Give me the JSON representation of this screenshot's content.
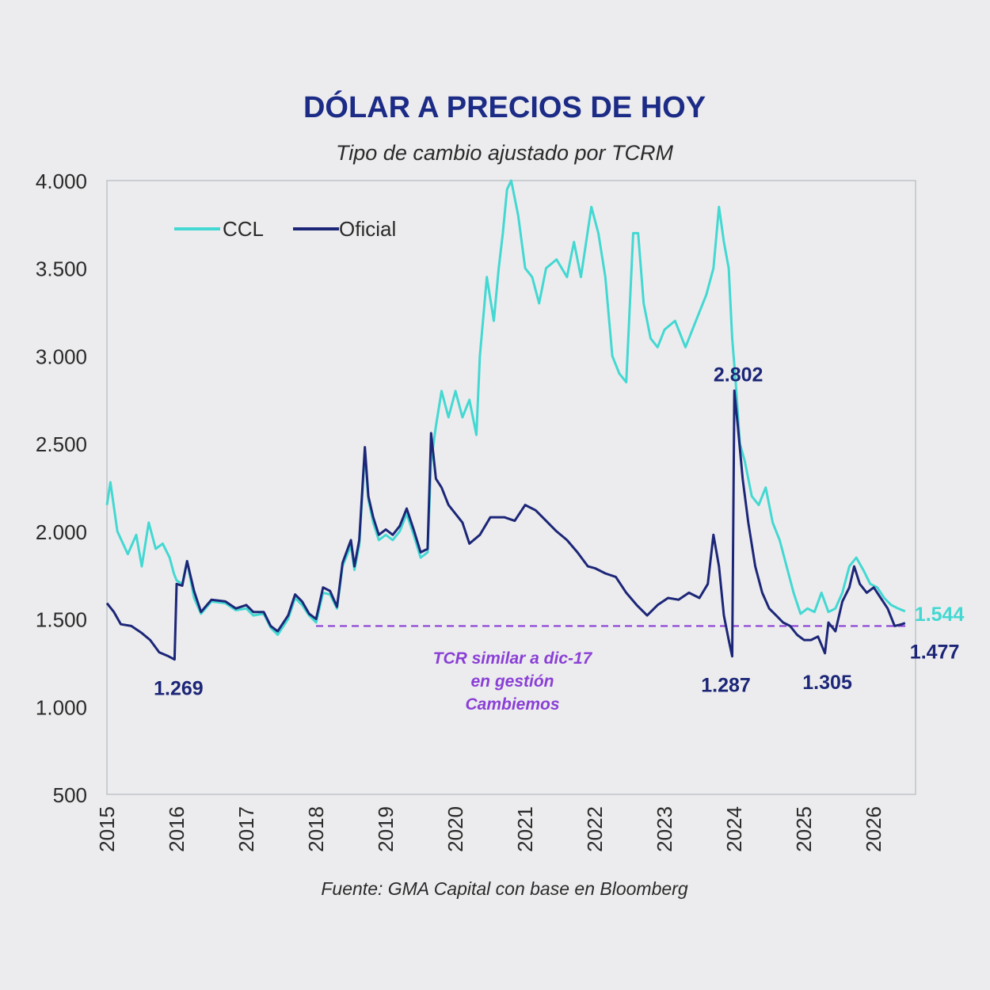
{
  "colors": {
    "background": "#ececee",
    "title": "#1b2b86",
    "ccl": "#43d8d2",
    "oficial": "#1c2677",
    "reference_line": "#8a3fd6",
    "reference_text": "#8a3fd6",
    "text": "#2a2a2a"
  },
  "chart_data": {
    "type": "line",
    "title": "DÓLAR A PRECIOS DE HOY",
    "subtitle": "Tipo de cambio ajustado por TCRM",
    "source": "Fuente: GMA Capital con base en Bloomberg",
    "xlabel": "",
    "ylabel": "",
    "xlim": [
      2015,
      2026.6
    ],
    "ylim": [
      500,
      4000
    ],
    "y_ticks": [
      500,
      1000,
      1500,
      2000,
      2500,
      3000,
      3500,
      4000
    ],
    "y_tick_labels": [
      "500",
      "1.000",
      "1.500",
      "2.000",
      "2.500",
      "3.000",
      "3.500",
      "4.000"
    ],
    "x_ticks": [
      2015,
      2016,
      2017,
      2018,
      2019,
      2020,
      2021,
      2022,
      2023,
      2024,
      2025,
      2026
    ],
    "x_tick_labels": [
      "2015",
      "2016",
      "2017",
      "2018",
      "2019",
      "2020",
      "2021",
      "2022",
      "2023",
      "2024",
      "2025",
      "2026"
    ],
    "grid": false,
    "legend_position": "top-left",
    "series": [
      {
        "name": "CCL",
        "color": "#43d8d2",
        "points": [
          [
            2015.0,
            2150
          ],
          [
            2015.05,
            2280
          ],
          [
            2015.15,
            2000
          ],
          [
            2015.3,
            1870
          ],
          [
            2015.42,
            1980
          ],
          [
            2015.5,
            1800
          ],
          [
            2015.6,
            2050
          ],
          [
            2015.7,
            1900
          ],
          [
            2015.8,
            1930
          ],
          [
            2015.9,
            1850
          ],
          [
            2015.96,
            1760
          ],
          [
            2016.0,
            1720
          ],
          [
            2016.08,
            1700
          ],
          [
            2016.15,
            1830
          ],
          [
            2016.25,
            1620
          ],
          [
            2016.35,
            1530
          ],
          [
            2016.5,
            1600
          ],
          [
            2016.7,
            1590
          ],
          [
            2016.85,
            1550
          ],
          [
            2017.0,
            1560
          ],
          [
            2017.1,
            1520
          ],
          [
            2017.25,
            1530
          ],
          [
            2017.35,
            1450
          ],
          [
            2017.45,
            1410
          ],
          [
            2017.6,
            1500
          ],
          [
            2017.7,
            1620
          ],
          [
            2017.8,
            1580
          ],
          [
            2017.9,
            1520
          ],
          [
            2018.0,
            1480
          ],
          [
            2018.1,
            1650
          ],
          [
            2018.2,
            1640
          ],
          [
            2018.3,
            1560
          ],
          [
            2018.38,
            1800
          ],
          [
            2018.5,
            1920
          ],
          [
            2018.55,
            1780
          ],
          [
            2018.62,
            1920
          ],
          [
            2018.7,
            2450
          ],
          [
            2018.75,
            2180
          ],
          [
            2018.82,
            2050
          ],
          [
            2018.9,
            1950
          ],
          [
            2019.0,
            1980
          ],
          [
            2019.1,
            1950
          ],
          [
            2019.2,
            2000
          ],
          [
            2019.3,
            2100
          ],
          [
            2019.4,
            1980
          ],
          [
            2019.5,
            1850
          ],
          [
            2019.6,
            1880
          ],
          [
            2019.65,
            2400
          ],
          [
            2019.72,
            2600
          ],
          [
            2019.8,
            2800
          ],
          [
            2019.9,
            2650
          ],
          [
            2020.0,
            2800
          ],
          [
            2020.1,
            2650
          ],
          [
            2020.2,
            2750
          ],
          [
            2020.3,
            2550
          ],
          [
            2020.35,
            3000
          ],
          [
            2020.45,
            3450
          ],
          [
            2020.55,
            3200
          ],
          [
            2020.62,
            3500
          ],
          [
            2020.68,
            3700
          ],
          [
            2020.74,
            3950
          ],
          [
            2020.8,
            4000
          ],
          [
            2020.9,
            3800
          ],
          [
            2021.0,
            3500
          ],
          [
            2021.1,
            3450
          ],
          [
            2021.2,
            3300
          ],
          [
            2021.3,
            3500
          ],
          [
            2021.45,
            3550
          ],
          [
            2021.6,
            3450
          ],
          [
            2021.7,
            3650
          ],
          [
            2021.8,
            3450
          ],
          [
            2021.95,
            3850
          ],
          [
            2022.05,
            3700
          ],
          [
            2022.15,
            3450
          ],
          [
            2022.25,
            3000
          ],
          [
            2022.35,
            2900
          ],
          [
            2022.45,
            2850
          ],
          [
            2022.55,
            3700
          ],
          [
            2022.62,
            3700
          ],
          [
            2022.7,
            3300
          ],
          [
            2022.8,
            3100
          ],
          [
            2022.9,
            3050
          ],
          [
            2023.0,
            3150
          ],
          [
            2023.15,
            3200
          ],
          [
            2023.3,
            3050
          ],
          [
            2023.45,
            3200
          ],
          [
            2023.6,
            3350
          ],
          [
            2023.7,
            3500
          ],
          [
            2023.78,
            3850
          ],
          [
            2023.85,
            3650
          ],
          [
            2023.92,
            3500
          ],
          [
            2023.97,
            3100
          ],
          [
            2024.02,
            2850
          ],
          [
            2024.08,
            2500
          ],
          [
            2024.15,
            2400
          ],
          [
            2024.25,
            2200
          ],
          [
            2024.35,
            2150
          ],
          [
            2024.45,
            2250
          ],
          [
            2024.55,
            2050
          ],
          [
            2024.65,
            1950
          ],
          [
            2024.75,
            1800
          ],
          [
            2024.85,
            1650
          ],
          [
            2024.95,
            1530
          ],
          [
            2025.05,
            1560
          ],
          [
            2025.15,
            1540
          ],
          [
            2025.25,
            1650
          ],
          [
            2025.35,
            1540
          ],
          [
            2025.45,
            1560
          ],
          [
            2025.55,
            1650
          ],
          [
            2025.65,
            1800
          ],
          [
            2025.75,
            1850
          ],
          [
            2025.85,
            1780
          ],
          [
            2025.95,
            1700
          ],
          [
            2026.05,
            1680
          ],
          [
            2026.15,
            1620
          ],
          [
            2026.25,
            1580
          ],
          [
            2026.35,
            1560
          ],
          [
            2026.45,
            1544
          ]
        ]
      },
      {
        "name": "Oficial",
        "color": "#1c2677",
        "points": [
          [
            2015.0,
            1590
          ],
          [
            2015.1,
            1540
          ],
          [
            2015.2,
            1470
          ],
          [
            2015.35,
            1460
          ],
          [
            2015.5,
            1420
          ],
          [
            2015.62,
            1380
          ],
          [
            2015.75,
            1310
          ],
          [
            2015.87,
            1290
          ],
          [
            2015.97,
            1269
          ],
          [
            2016.0,
            1700
          ],
          [
            2016.08,
            1690
          ],
          [
            2016.15,
            1830
          ],
          [
            2016.25,
            1660
          ],
          [
            2016.35,
            1540
          ],
          [
            2016.5,
            1610
          ],
          [
            2016.7,
            1600
          ],
          [
            2016.85,
            1560
          ],
          [
            2017.0,
            1580
          ],
          [
            2017.1,
            1540
          ],
          [
            2017.25,
            1540
          ],
          [
            2017.35,
            1460
          ],
          [
            2017.45,
            1430
          ],
          [
            2017.6,
            1520
          ],
          [
            2017.7,
            1640
          ],
          [
            2017.8,
            1600
          ],
          [
            2017.9,
            1530
          ],
          [
            2018.0,
            1500
          ],
          [
            2018.1,
            1680
          ],
          [
            2018.2,
            1660
          ],
          [
            2018.3,
            1570
          ],
          [
            2018.38,
            1820
          ],
          [
            2018.5,
            1950
          ],
          [
            2018.55,
            1800
          ],
          [
            2018.62,
            1950
          ],
          [
            2018.7,
            2480
          ],
          [
            2018.75,
            2200
          ],
          [
            2018.82,
            2080
          ],
          [
            2018.9,
            1980
          ],
          [
            2019.0,
            2010
          ],
          [
            2019.1,
            1980
          ],
          [
            2019.2,
            2030
          ],
          [
            2019.3,
            2130
          ],
          [
            2019.4,
            2010
          ],
          [
            2019.5,
            1880
          ],
          [
            2019.6,
            1900
          ],
          [
            2019.65,
            2560
          ],
          [
            2019.72,
            2300
          ],
          [
            2019.8,
            2250
          ],
          [
            2019.9,
            2150
          ],
          [
            2020.0,
            2100
          ],
          [
            2020.1,
            2050
          ],
          [
            2020.2,
            1930
          ],
          [
            2020.35,
            1980
          ],
          [
            2020.5,
            2080
          ],
          [
            2020.7,
            2080
          ],
          [
            2020.85,
            2060
          ],
          [
            2021.0,
            2150
          ],
          [
            2021.15,
            2120
          ],
          [
            2021.3,
            2060
          ],
          [
            2021.45,
            2000
          ],
          [
            2021.6,
            1950
          ],
          [
            2021.75,
            1880
          ],
          [
            2021.9,
            1800
          ],
          [
            2022.0,
            1790
          ],
          [
            2022.15,
            1760
          ],
          [
            2022.3,
            1740
          ],
          [
            2022.45,
            1650
          ],
          [
            2022.6,
            1580
          ],
          [
            2022.75,
            1520
          ],
          [
            2022.9,
            1580
          ],
          [
            2023.05,
            1620
          ],
          [
            2023.2,
            1610
          ],
          [
            2023.35,
            1650
          ],
          [
            2023.5,
            1620
          ],
          [
            2023.62,
            1700
          ],
          [
            2023.7,
            1980
          ],
          [
            2023.78,
            1800
          ],
          [
            2023.85,
            1520
          ],
          [
            2023.92,
            1380
          ],
          [
            2023.97,
            1287
          ],
          [
            2024.0,
            2802
          ],
          [
            2024.05,
            2600
          ],
          [
            2024.12,
            2300
          ],
          [
            2024.2,
            2050
          ],
          [
            2024.3,
            1800
          ],
          [
            2024.4,
            1650
          ],
          [
            2024.5,
            1560
          ],
          [
            2024.6,
            1520
          ],
          [
            2024.7,
            1480
          ],
          [
            2024.8,
            1460
          ],
          [
            2024.9,
            1410
          ],
          [
            2025.0,
            1380
          ],
          [
            2025.1,
            1380
          ],
          [
            2025.2,
            1400
          ],
          [
            2025.3,
            1305
          ],
          [
            2025.35,
            1480
          ],
          [
            2025.45,
            1430
          ],
          [
            2025.55,
            1600
          ],
          [
            2025.65,
            1680
          ],
          [
            2025.72,
            1800
          ],
          [
            2025.8,
            1700
          ],
          [
            2025.9,
            1650
          ],
          [
            2026.0,
            1680
          ],
          [
            2026.1,
            1620
          ],
          [
            2026.2,
            1560
          ],
          [
            2026.3,
            1460
          ],
          [
            2026.4,
            1470
          ],
          [
            2026.45,
            1477
          ]
        ]
      }
    ],
    "reference_line": {
      "y": 1460,
      "x_start": 2018.0,
      "x_end": 2026.45,
      "label_lines": [
        "TCR similar a dic-17",
        "en gestión",
        "Cambiemos"
      ]
    },
    "annotations": [
      {
        "text": "1.269",
        "series": "Oficial",
        "x": 2015.97,
        "y": 1269
      },
      {
        "text": "2.802",
        "series": "Oficial",
        "x": 2024.0,
        "y": 2802
      },
      {
        "text": "1.287",
        "series": "Oficial",
        "x": 2023.97,
        "y": 1287
      },
      {
        "text": "1.305",
        "series": "Oficial",
        "x": 2025.3,
        "y": 1305
      },
      {
        "text": "1.544",
        "series": "CCL",
        "x": 2026.45,
        "y": 1544
      },
      {
        "text": "1.477",
        "series": "Oficial",
        "x": 2026.45,
        "y": 1477
      }
    ]
  }
}
